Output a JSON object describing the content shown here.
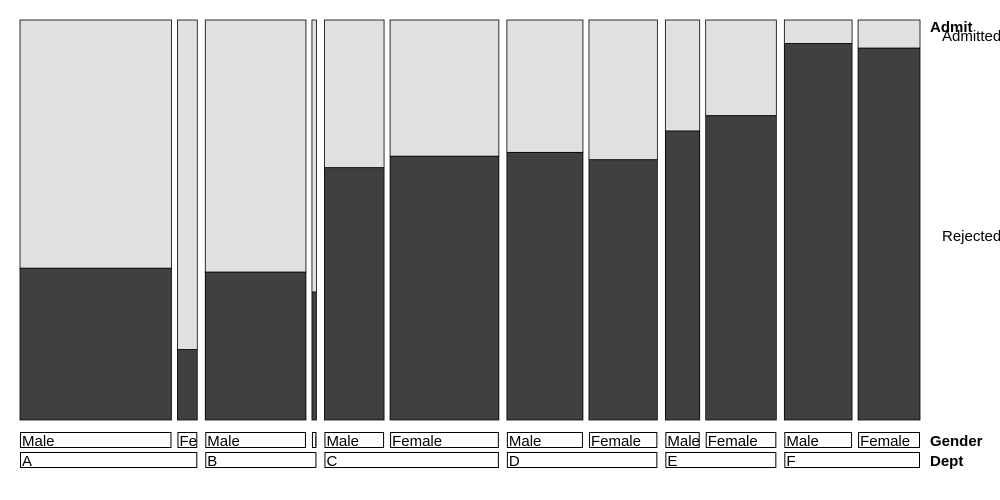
{
  "chart_data": {
    "type": "mosaic",
    "variables": {
      "admit": "Admit",
      "gender": "Gender",
      "dept": "Dept"
    },
    "admit_levels": [
      "Admitted",
      "Rejected"
    ],
    "colors": {
      "Admitted": "#e0e0e0",
      "Rejected": "#404040"
    },
    "departments": [
      {
        "label": "A",
        "groups": [
          {
            "gender": "Male",
            "admitted": 512,
            "rejected": 313
          },
          {
            "gender": "Female",
            "admitted": 89,
            "rejected": 19
          }
        ]
      },
      {
        "label": "B",
        "groups": [
          {
            "gender": "Male",
            "admitted": 353,
            "rejected": 207
          },
          {
            "gender": "Female",
            "admitted": 17,
            "rejected": 8
          }
        ]
      },
      {
        "label": "C",
        "groups": [
          {
            "gender": "Male",
            "admitted": 120,
            "rejected": 205
          },
          {
            "gender": "Female",
            "admitted": 202,
            "rejected": 391
          }
        ]
      },
      {
        "label": "D",
        "groups": [
          {
            "gender": "Male",
            "admitted": 138,
            "rejected": 279
          },
          {
            "gender": "Female",
            "admitted": 131,
            "rejected": 244
          }
        ]
      },
      {
        "label": "E",
        "groups": [
          {
            "gender": "Male",
            "admitted": 53,
            "rejected": 138
          },
          {
            "gender": "Female",
            "admitted": 94,
            "rejected": 299
          }
        ]
      },
      {
        "label": "F",
        "groups": [
          {
            "gender": "Male",
            "admitted": 22,
            "rejected": 351
          },
          {
            "gender": "Female",
            "admitted": 24,
            "rejected": 317
          }
        ]
      }
    ]
  }
}
